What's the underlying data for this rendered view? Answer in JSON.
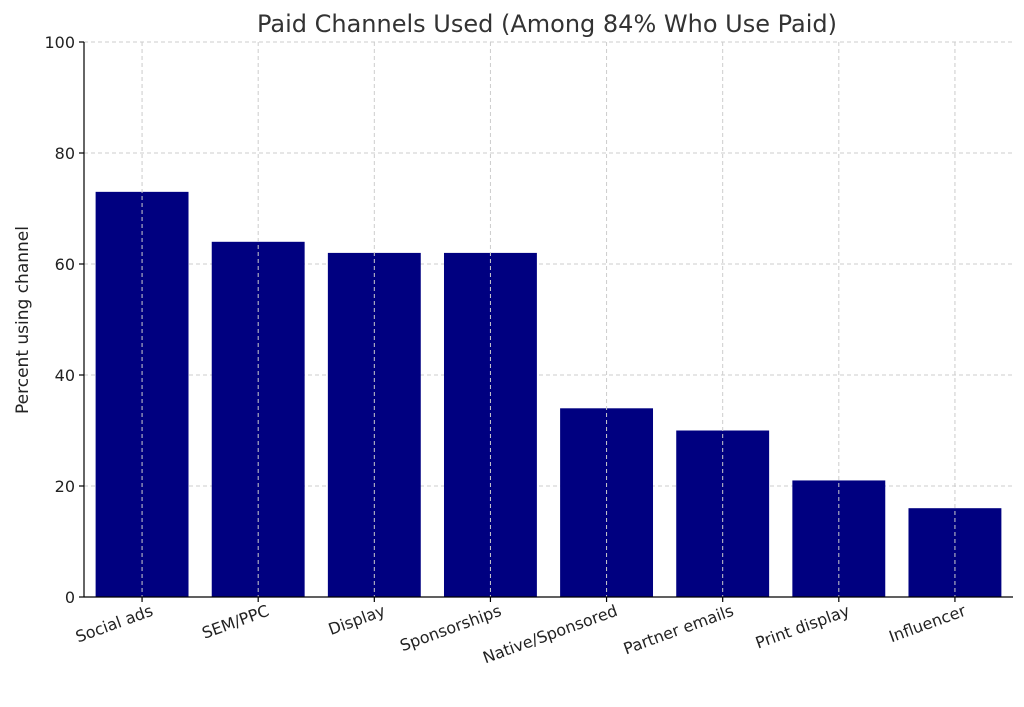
{
  "chart_data": {
    "type": "bar",
    "title": "Paid Channels Used (Among 84% Who Use Paid)",
    "xlabel": "",
    "ylabel": "Percent using channel",
    "categories": [
      "Social ads",
      "SEM/PPC",
      "Display",
      "Sponsorships",
      "Native/Sponsored",
      "Partner emails",
      "Print display",
      "Influencer"
    ],
    "values": [
      73,
      64,
      62,
      62,
      34,
      30,
      21,
      16
    ],
    "ylim": [
      0,
      100
    ],
    "yticks": [
      0,
      20,
      40,
      60,
      80,
      100
    ],
    "grid": true,
    "bar_color": "#000080"
  }
}
